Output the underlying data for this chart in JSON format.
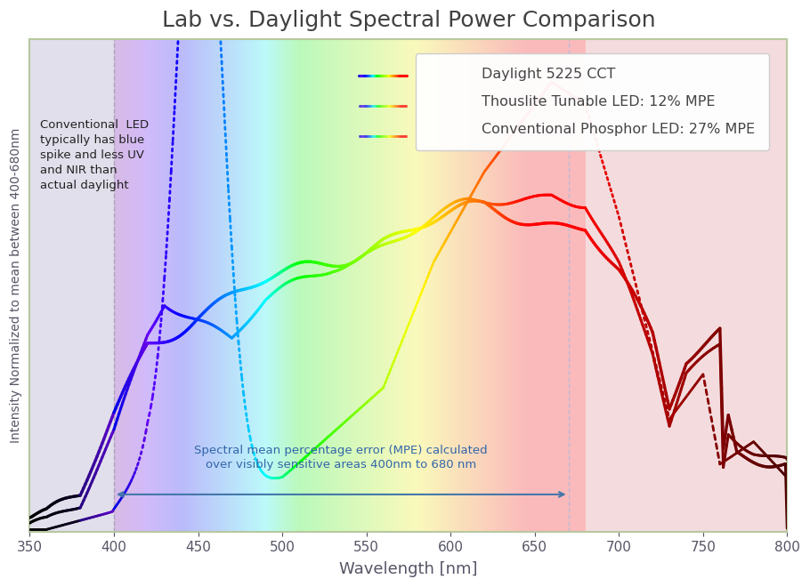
{
  "title": "Lab vs. Daylight Spectral Power Comparison",
  "xlabel": "Wavelength [nm]",
  "ylabel": "Intensity Normalized to mean between 400-680nm",
  "xlim": [
    350,
    800
  ],
  "ylim": [
    0,
    1.85
  ],
  "title_fontsize": 18,
  "axis_label_fontsize": 13,
  "vline_400": 400,
  "vline_670": 670,
  "annotation_text": "Conventional  LED\ntypically has blue\nspike and less UV\nand NIR than\nactual daylight",
  "mpe_text": "Spectral mean percentage error (MPE) calculated\nover visibly sensitive areas 400nm to 680 nm",
  "legend_labels": [
    "Daylight 5225 CCT",
    "Thouslite Tunable LED: 12% MPE",
    "Conventional Phosphor LED: 27% MPE"
  ],
  "xticks": [
    350,
    400,
    450,
    500,
    550,
    600,
    650,
    700,
    750,
    800
  ]
}
